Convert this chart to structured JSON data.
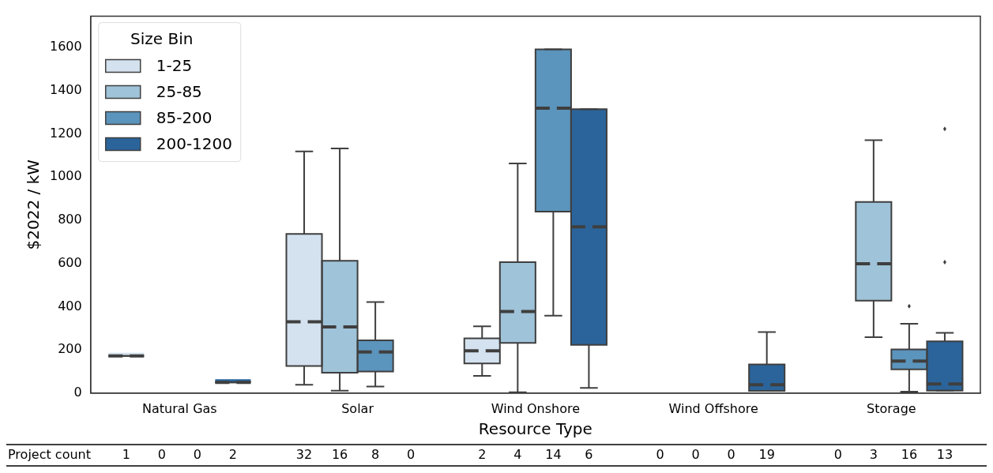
{
  "chart_data": {
    "type": "box",
    "xlabel": "Resource Type",
    "ylabel": "$2022 / kW",
    "legend_title": "Size Bin",
    "legend": "top left",
    "grid": false,
    "categories": [
      "Natural Gas",
      "Solar",
      "Wind Onshore",
      "Wind Offshore",
      "Storage"
    ],
    "ylim": [
      0,
      1745
    ],
    "yticks": [
      0,
      200,
      400,
      600,
      800,
      1000,
      1200,
      1400,
      1600
    ],
    "series": [
      {
        "name": "1-25",
        "color": "#d4e2ef",
        "boxes": [
          {
            "low": 172,
            "q1": 172,
            "median": 172,
            "q3": 172,
            "high": 172
          },
          {
            "low": 39,
            "q1": 125,
            "median": 330,
            "q3": 737,
            "high": 1119
          },
          {
            "low": 80,
            "q1": 137,
            "median": 196,
            "q3": 253,
            "high": 309
          },
          null,
          null
        ]
      },
      {
        "name": "25-85",
        "color": "#9fc3d8",
        "boxes": [
          null,
          {
            "low": 11,
            "q1": 94,
            "median": 306,
            "q3": 613,
            "high": 1133
          },
          {
            "low": 4,
            "q1": 232,
            "median": 378,
            "q3": 606,
            "high": 1063
          },
          null,
          {
            "low": 259,
            "q1": 428,
            "median": 599,
            "q3": 885,
            "high": 1171
          }
        ]
      },
      {
        "name": "85-200",
        "color": "#5b94bc",
        "boxes": [
          null,
          {
            "low": 30,
            "q1": 100,
            "median": 190,
            "q3": 244,
            "high": 422
          },
          {
            "low": 359,
            "q1": 840,
            "median": 1319,
            "q3": 1592,
            "high": 1592
          },
          null,
          {
            "low": 7,
            "q1": 110,
            "median": 148,
            "q3": 202,
            "high": 321,
            "outliers": [
              402
            ]
          }
        ]
      },
      {
        "name": "200-1200",
        "color": "#2b649a",
        "boxes": [
          {
            "low": 50,
            "q1": 50,
            "median": 50,
            "q3": 50,
            "high": 50
          },
          null,
          {
            "low": 24,
            "q1": 223,
            "median": 770,
            "q3": 1315,
            "high": 1315
          },
          {
            "low": 10,
            "q1": 10,
            "median": 39,
            "q3": 133,
            "high": 283
          },
          {
            "low": 11,
            "q1": 11,
            "median": 42,
            "q3": 240,
            "high": 279,
            "outliers": [
              606,
              1223
            ]
          }
        ]
      }
    ],
    "annotations": [
      "Project count",
      "1",
      "0",
      "0",
      "2",
      "32",
      "16",
      "8",
      "0",
      "2",
      "4",
      "14",
      "6",
      "0",
      "0",
      "0",
      "19",
      "0",
      "3",
      "16",
      "13"
    ]
  }
}
